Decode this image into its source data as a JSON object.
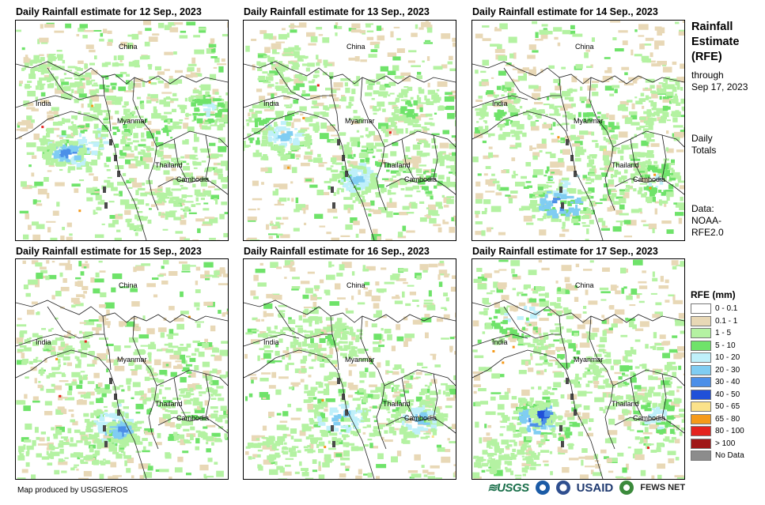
{
  "panels": [
    {
      "title": "Daily Rainfall estimate for 12 Sep., 2023",
      "variant": 0
    },
    {
      "title": "Daily Rainfall estimate for 13 Sep., 2023",
      "variant": 1
    },
    {
      "title": "Daily Rainfall estimate for 14 Sep., 2023",
      "variant": 2
    },
    {
      "title": "Daily Rainfall estimate for 15 Sep., 2023",
      "variant": 3
    },
    {
      "title": "Daily Rainfall estimate for 16 Sep., 2023",
      "variant": 4
    },
    {
      "title": "Daily Rainfall estimate for 17 Sep., 2023",
      "variant": 5
    }
  ],
  "place_labels": {
    "china": "China",
    "india": "India",
    "myanmar": "Myanmar",
    "thailand": "Thailand",
    "cambodia": "Cambodia"
  },
  "sidebar": {
    "heading_line1": "Rainfall",
    "heading_line2": "Estimate",
    "heading_line3": "(RFE)",
    "through_line1": "through",
    "through_line2": "Sep 17, 2023",
    "daily_line1": "Daily",
    "daily_line2": "Totals",
    "data_line1": "Data:",
    "data_line2": "NOAA-",
    "data_line3": "RFE2.0"
  },
  "legend": {
    "title": "RFE (mm)",
    "items": [
      {
        "label": "0 - 0.1",
        "color": "#ffffff"
      },
      {
        "label": "0.1 - 1",
        "color": "#e8d8b6"
      },
      {
        "label": "1 - 5",
        "color": "#b4f2a2"
      },
      {
        "label": "5 - 10",
        "color": "#6fe36a"
      },
      {
        "label": "10 - 20",
        "color": "#bff0fa"
      },
      {
        "label": "20 - 30",
        "color": "#80cdf2"
      },
      {
        "label": "30 - 40",
        "color": "#4c8fe8"
      },
      {
        "label": "40 - 50",
        "color": "#2050d8"
      },
      {
        "label": "50 - 65",
        "color": "#fbe28a"
      },
      {
        "label": "65 - 80",
        "color": "#f59a1a"
      },
      {
        "label": "80 - 100",
        "color": "#e4231e"
      },
      {
        "label": "> 100",
        "color": "#a01818"
      },
      {
        "label": "No Data",
        "color": "#8c8c8c"
      }
    ]
  },
  "footer": {
    "credit": "Map produced by USGS/EROS",
    "usgs": "≋USGS",
    "usaid": "USAID",
    "fews": "FEWS NET"
  }
}
